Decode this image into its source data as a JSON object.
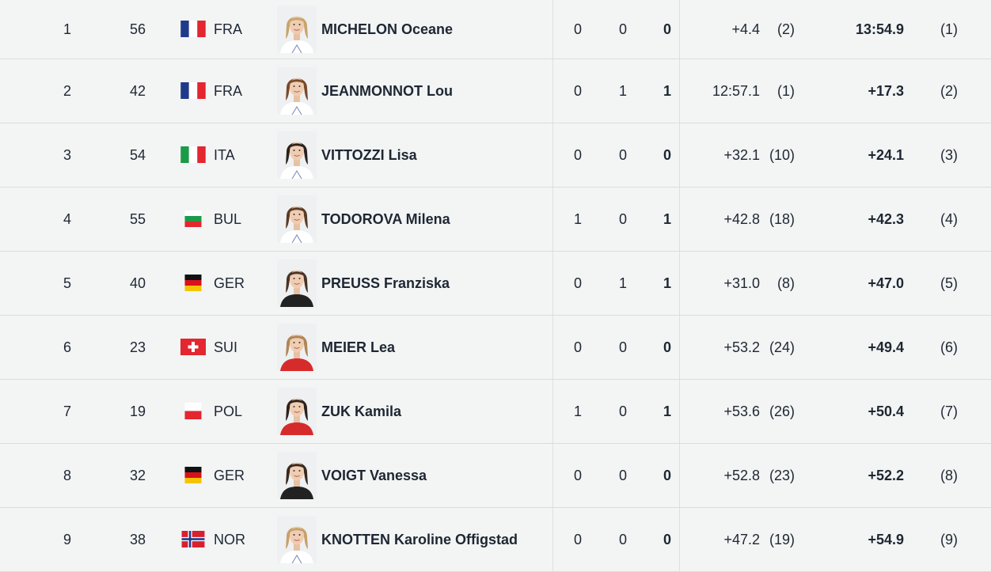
{
  "colors": {
    "background": "#f3f4f4",
    "row_divider": "#d9dcde",
    "text": "#1d2733"
  },
  "rows": [
    {
      "rank": "1",
      "bib": "56",
      "nat": "FRA",
      "flag": "fra",
      "name": "MICHELON Oceane",
      "s1": "0",
      "s2": "0",
      "s3": "0",
      "course_time": "+4.4",
      "course_rank": "(2)",
      "result": "13:54.9",
      "result_rank": "(1)",
      "suit": "white",
      "hair": "#c9a46a"
    },
    {
      "rank": "2",
      "bib": "42",
      "nat": "FRA",
      "flag": "fra",
      "name": "JEANMONNOT Lou",
      "s1": "0",
      "s2": "1",
      "s3": "1",
      "course_time": "12:57.1",
      "course_rank": "(1)",
      "result": "+17.3",
      "result_rank": "(2)",
      "suit": "white",
      "hair": "#7a4a2a"
    },
    {
      "rank": "3",
      "bib": "54",
      "nat": "ITA",
      "flag": "ita",
      "name": "VITTOZZI Lisa",
      "s1": "0",
      "s2": "0",
      "s3": "0",
      "course_time": "+32.1",
      "course_rank": "(10)",
      "result": "+24.1",
      "result_rank": "(3)",
      "suit": "white",
      "hair": "#2b211c"
    },
    {
      "rank": "4",
      "bib": "55",
      "nat": "BUL",
      "flag": "bul",
      "name": "TODOROVA Milena",
      "s1": "1",
      "s2": "0",
      "s3": "1",
      "course_time": "+42.8",
      "course_rank": "(18)",
      "result": "+42.3",
      "result_rank": "(4)",
      "suit": "white",
      "hair": "#5a3b24"
    },
    {
      "rank": "5",
      "bib": "40",
      "nat": "GER",
      "flag": "ger",
      "name": "PREUSS Franziska",
      "s1": "0",
      "s2": "1",
      "s3": "1",
      "course_time": "+31.0",
      "course_rank": "(8)",
      "result": "+47.0",
      "result_rank": "(5)",
      "suit": "black",
      "hair": "#4a3325"
    },
    {
      "rank": "6",
      "bib": "23",
      "nat": "SUI",
      "flag": "sui",
      "name": "MEIER Lea",
      "s1": "0",
      "s2": "0",
      "s3": "0",
      "course_time": "+53.2",
      "course_rank": "(24)",
      "result": "+49.4",
      "result_rank": "(6)",
      "suit": "red",
      "hair": "#b08555"
    },
    {
      "rank": "7",
      "bib": "19",
      "nat": "POL",
      "flag": "pol",
      "name": "ZUK Kamila",
      "s1": "1",
      "s2": "0",
      "s3": "1",
      "course_time": "+53.6",
      "course_rank": "(26)",
      "result": "+50.4",
      "result_rank": "(7)",
      "suit": "red",
      "hair": "#2e211a"
    },
    {
      "rank": "8",
      "bib": "32",
      "nat": "GER",
      "flag": "ger",
      "name": "VOIGT Vanessa",
      "s1": "0",
      "s2": "0",
      "s3": "0",
      "course_time": "+52.8",
      "course_rank": "(23)",
      "result": "+52.2",
      "result_rank": "(8)",
      "suit": "black",
      "hair": "#3a281c"
    },
    {
      "rank": "9",
      "bib": "38",
      "nat": "NOR",
      "flag": "nor",
      "name": "KNOTTEN Karoline Offigstad",
      "s1": "0",
      "s2": "0",
      "s3": "0",
      "course_time": "+47.2",
      "course_rank": "(19)",
      "result": "+54.9",
      "result_rank": "(9)",
      "suit": "white",
      "hair": "#c8a06a"
    }
  ]
}
